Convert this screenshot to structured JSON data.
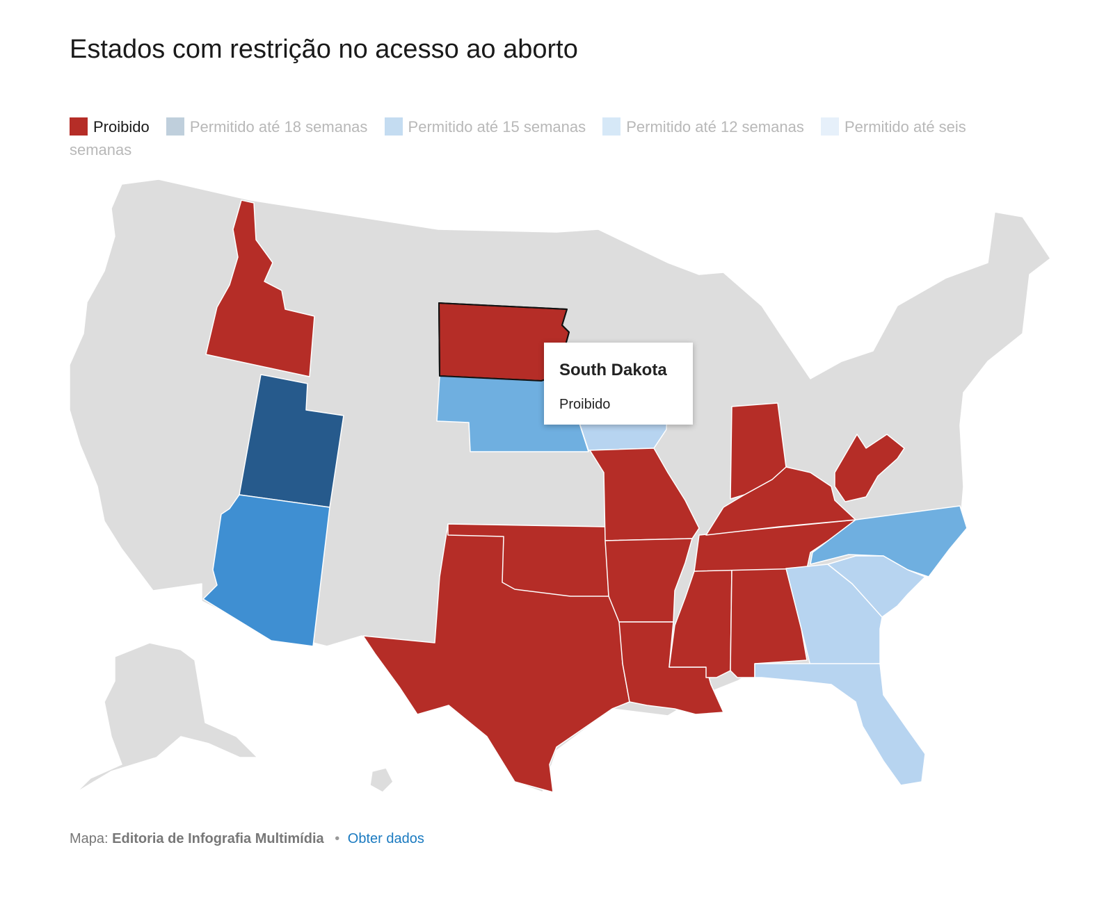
{
  "title": "Estados com restrição no acesso ao aborto",
  "legend": [
    {
      "label": "Proibido",
      "color": "#b52d27",
      "active": true
    },
    {
      "label": "Permitido até 18 semanas",
      "color": "#bfcfdc",
      "active": false
    },
    {
      "label": "Permitido até 15 semanas",
      "color": "#c4dcf1",
      "active": false
    },
    {
      "label": "Permitido até 12 semanas",
      "color": "#d6e8f7",
      "active": false
    },
    {
      "label": "Permitido até seis semanas",
      "color": "#e6f0fa",
      "active": false
    }
  ],
  "map_colors": {
    "default": "#dddddd",
    "proibido": "#b52d27",
    "utah": "#265a8c",
    "arizona": "#3f8fd2",
    "medium_blue": "#6fafe0",
    "light_blue": "#b7d4f0"
  },
  "tooltip": {
    "state": "South Dakota",
    "status": "Proibido"
  },
  "footer": {
    "prefix": "Mapa:",
    "source": "Editoria de Infografia Multimídia",
    "separator": "•",
    "link": "Obter dados"
  }
}
